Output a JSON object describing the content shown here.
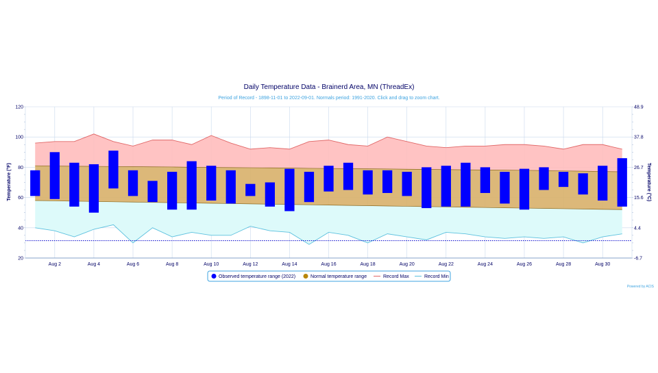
{
  "chart_data": {
    "type": "bar",
    "title": "Daily Temperature Data - Brainerd Area, MN (ThreadEx)",
    "subtitle": "Period of Record - 1898-11-01 to 2022-09-01. Normals period: 1991-2020. Click and drag to zoom chart.",
    "ylabel": "Temperature (°F)",
    "y2label": "Temperature (°C)",
    "ylim": [
      20,
      120
    ],
    "yticks": [
      20,
      40,
      60,
      80,
      100,
      120
    ],
    "y2ticks": [
      "-6.7",
      "4.4",
      "15.6",
      "26.7",
      "37.8",
      "48.9"
    ],
    "x": [
      1,
      2,
      3,
      4,
      5,
      6,
      7,
      8,
      9,
      10,
      11,
      12,
      13,
      14,
      15,
      16,
      17,
      18,
      19,
      20,
      21,
      22,
      23,
      24,
      25,
      26,
      27,
      28,
      29,
      30,
      31
    ],
    "xtick_labels": [
      "Aug 2",
      "Aug 4",
      "Aug 6",
      "Aug 8",
      "Aug 10",
      "Aug 12",
      "Aug 14",
      "Aug 16",
      "Aug 18",
      "Aug 20",
      "Aug 22",
      "Aug 24",
      "Aug 26",
      "Aug 28",
      "Aug 30"
    ],
    "xtick_positions": [
      2,
      4,
      6,
      8,
      10,
      12,
      14,
      16,
      18,
      20,
      22,
      24,
      26,
      28,
      30
    ],
    "series": [
      {
        "name": "Observed temperature range (2022)",
        "color": "#0000ff",
        "low": [
          61,
          59,
          54,
          50,
          66,
          61,
          57,
          52,
          52,
          58,
          56,
          61,
          54,
          51,
          57,
          64,
          65,
          62,
          63,
          61,
          53,
          54,
          54,
          63,
          56,
          52,
          65,
          67,
          62,
          58,
          54
        ],
        "high": [
          78,
          90,
          83,
          82,
          91,
          78,
          71,
          77,
          84,
          81,
          78,
          69,
          70,
          79,
          77,
          81,
          83,
          78,
          78,
          77,
          80,
          81,
          83,
          80,
          77,
          79,
          80,
          77,
          76,
          81,
          86
        ]
      },
      {
        "name": "Normal temperature range",
        "color": "#b8860b",
        "low": [
          58,
          57.8,
          57.6,
          57.4,
          57.2,
          57,
          56.8,
          56.6,
          56.4,
          56.2,
          56,
          55.8,
          55.6,
          55.4,
          55.2,
          55,
          54.8,
          54.6,
          54.4,
          54.2,
          54,
          53.8,
          53.6,
          53.4,
          53.2,
          53,
          52.8,
          52.6,
          52.4,
          52.2,
          52
        ],
        "high": [
          81,
          80.8,
          80.7,
          80.6,
          80.5,
          80.4,
          80.3,
          80.2,
          80,
          79.9,
          79.8,
          79.7,
          79.6,
          79.5,
          79.3,
          79.2,
          79.1,
          79,
          78.9,
          78.7,
          78.6,
          78.5,
          78.3,
          78.2,
          78.1,
          78,
          77.8,
          77.6,
          77.4,
          77.2,
          77
        ]
      },
      {
        "name": "Record Max",
        "color": "#e06666",
        "values": [
          96,
          97,
          97,
          102,
          97,
          94,
          98,
          98,
          95,
          101,
          96,
          92,
          93,
          92,
          97,
          98,
          95,
          94,
          100,
          97,
          94,
          93,
          94,
          94,
          95,
          95,
          94,
          92,
          95,
          95,
          92
        ]
      },
      {
        "name": "Record Min",
        "color": "#5bc0de",
        "values": [
          40,
          38,
          34,
          39,
          42,
          30,
          40,
          34,
          37,
          35,
          35,
          41,
          38,
          37,
          29,
          37,
          35,
          30,
          36,
          34,
          32,
          37,
          36,
          34,
          33,
          34,
          33,
          34,
          30,
          34,
          36
        ]
      }
    ],
    "reference_line": {
      "value": 31.5,
      "color": "#0000cc"
    },
    "grid": true,
    "legend_position": "bottom",
    "credit": "Powered by ACIS"
  }
}
